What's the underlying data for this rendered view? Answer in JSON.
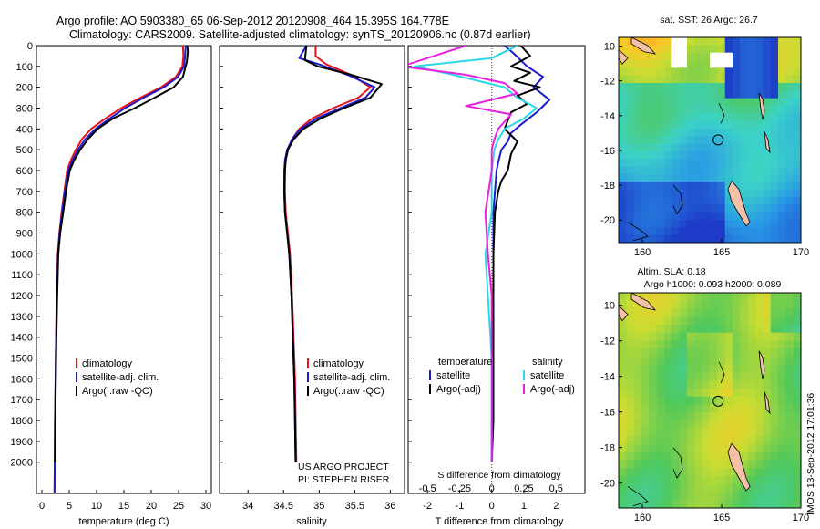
{
  "header": {
    "title_line1": "Argo profile: AO 5903380_65 06-Sep-2012 20120908_464 15.395S 164.778E",
    "title_line2": "Climatology: CARS2009. Satellite-adjusted climatology: synTS_20120906.nc (0.87d earlier)"
  },
  "colors": {
    "climatology": "#e8141a",
    "satellite": "#1a1ad0",
    "argo": "#000000",
    "sat_salinity": "#28d8e8",
    "argo_salinity": "#e81ee0"
  },
  "chart_data": [
    {
      "type": "line",
      "id": "temperature",
      "xlabel": "temperature (deg C)",
      "ylim": [
        2150,
        0
      ],
      "xlim": [
        -1,
        31
      ],
      "xticks": [
        "0",
        "5",
        "10",
        "15",
        "20",
        "25",
        "30"
      ],
      "yticks": [
        "0",
        "100",
        "200",
        "300",
        "400",
        "500",
        "600",
        "700",
        "800",
        "900",
        "1000",
        "1100",
        "1200",
        "1300",
        "1400",
        "1500",
        "1600",
        "1700",
        "1800",
        "1900",
        "2000"
      ],
      "legend": [
        "climatology",
        "satellite-adj. clim.",
        "Argo(..raw -QC)"
      ],
      "series": [
        {
          "name": "climatology",
          "color_key": "climatology",
          "x": [
            25.8,
            25.9,
            25.7,
            24.5,
            21.8,
            18.0,
            14.5,
            11.6,
            9.0,
            7.3,
            6.2,
            5.3,
            4.6,
            4.1,
            3.6,
            3.2,
            2.9,
            2.7,
            2.6,
            2.5,
            2.4,
            2.35,
            2.3
          ],
          "y": [
            0,
            50,
            100,
            150,
            200,
            250,
            300,
            350,
            400,
            450,
            500,
            550,
            600,
            700,
            800,
            900,
            1000,
            1200,
            1400,
            1600,
            1800,
            2000,
            2150
          ]
        },
        {
          "name": "satellite-adj. clim.",
          "color_key": "satellite",
          "x": [
            26.3,
            26.2,
            26.0,
            24.9,
            22.3,
            18.6,
            15.2,
            12.4,
            9.8,
            7.9,
            6.6,
            5.6,
            4.8,
            4.2,
            3.7,
            3.25,
            2.95,
            2.75,
            2.6,
            2.5,
            2.4,
            2.35,
            2.3
          ],
          "y": [
            0,
            50,
            100,
            150,
            200,
            250,
            300,
            350,
            400,
            450,
            500,
            550,
            600,
            700,
            800,
            900,
            1000,
            1200,
            1400,
            1600,
            1800,
            2000,
            2150
          ]
        },
        {
          "name": "Argo(..raw -QC)",
          "color_key": "argo",
          "x": [
            26.6,
            26.7,
            26.5,
            25.8,
            24.1,
            20.6,
            17.0,
            13.0,
            10.2,
            8.4,
            7.0,
            5.9,
            5.1,
            4.4,
            3.9,
            3.35,
            3.0,
            2.8,
            2.65,
            2.55,
            2.45,
            2.4
          ],
          "y": [
            0,
            30,
            80,
            150,
            200,
            250,
            300,
            350,
            400,
            450,
            500,
            550,
            600,
            700,
            800,
            900,
            1000,
            1200,
            1400,
            1600,
            1800,
            2000
          ]
        }
      ]
    },
    {
      "type": "line",
      "id": "salinity",
      "xlabel": "salinity",
      "ylim": [
        2150,
        0
      ],
      "xlim": [
        33.6,
        36.2
      ],
      "xticks": [
        "34",
        "34.5",
        "35",
        "35.5",
        "36"
      ],
      "legend": [
        "climatology",
        "satellite-adj. clim.",
        "Argo(..raw -QC)"
      ],
      "annotation": [
        "US ARGO PROJECT",
        "PI: STEPHEN RISER"
      ],
      "series": [
        {
          "name": "climatology",
          "color_key": "climatology",
          "x": [
            34.95,
            34.95,
            35.1,
            35.45,
            35.72,
            35.55,
            35.2,
            34.9,
            34.72,
            34.62,
            34.56,
            34.53,
            34.52,
            34.52,
            34.53,
            34.56,
            34.59,
            34.62,
            34.64,
            34.66,
            34.67,
            34.68
          ],
          "y": [
            0,
            50,
            90,
            140,
            200,
            250,
            300,
            350,
            400,
            450,
            500,
            550,
            600,
            700,
            800,
            900,
            1000,
            1200,
            1400,
            1600,
            1800,
            2000
          ]
        },
        {
          "name": "satellite-adj. clim.",
          "color_key": "satellite",
          "x": [
            34.82,
            34.72,
            35.0,
            35.4,
            35.78,
            35.65,
            35.3,
            34.96,
            34.74,
            34.62,
            34.55,
            34.52,
            34.51,
            34.51,
            34.52,
            34.55,
            34.58,
            34.61,
            34.63,
            34.65,
            34.66,
            34.67
          ],
          "y": [
            0,
            60,
            90,
            140,
            200,
            250,
            300,
            350,
            400,
            450,
            500,
            550,
            600,
            700,
            800,
            900,
            1000,
            1200,
            1400,
            1600,
            1800,
            2000
          ]
        },
        {
          "name": "Argo(..raw -QC)",
          "color_key": "argo",
          "x": [
            34.82,
            34.8,
            34.98,
            35.45,
            35.88,
            35.72,
            35.35,
            35.02,
            34.78,
            34.64,
            34.56,
            34.53,
            34.52,
            34.51,
            34.52,
            34.55,
            34.58,
            34.61,
            34.63,
            34.65,
            34.66,
            34.67
          ],
          "y": [
            0,
            70,
            100,
            140,
            185,
            250,
            300,
            350,
            400,
            450,
            500,
            550,
            600,
            700,
            800,
            900,
            1000,
            1200,
            1400,
            1600,
            1800,
            2000
          ]
        }
      ]
    },
    {
      "type": "line",
      "id": "difference",
      "xlabel_top": "S difference from climatology",
      "xlabel": "T difference from climatology",
      "ylim": [
        2150,
        0
      ],
      "xlim": [
        -2.6,
        2.9
      ],
      "s_ticks": [
        "-0.5",
        "-0.25",
        "0",
        "0.25",
        "0.5"
      ],
      "t_ticks": [
        "-2",
        "-1",
        "0",
        "1",
        "2"
      ],
      "legend_headers": [
        "temperature",
        "salinity"
      ],
      "legend": [
        "satellite",
        "Argo(-adj)",
        "satellite",
        "Argo(-adj)"
      ],
      "series": [
        {
          "name": "satellite",
          "quantity": "temperature",
          "color_key": "satellite",
          "x": [
            0.4,
            0.7,
            1.1,
            1.6,
            1.3,
            1.8,
            1.4,
            0.9,
            0.6,
            0.5,
            0.3,
            0.2,
            0.15,
            0.1,
            0.05,
            0.05,
            0.05,
            0.02,
            0.02,
            0.0
          ],
          "y": [
            0,
            40,
            100,
            150,
            200,
            260,
            320,
            380,
            420,
            460,
            500,
            560,
            600,
            700,
            800,
            1000,
            1200,
            1500,
            1800,
            2000
          ]
        },
        {
          "name": "Argo(-adj)",
          "quantity": "temperature",
          "color_key": "argo",
          "x": [
            0.9,
            1.2,
            0.6,
            1.2,
            0.7,
            1.5,
            0.8,
            1.1,
            0.6,
            0.4,
            0.8,
            0.6,
            0.5,
            0.3,
            0.2,
            0.1,
            0.05,
            0.05,
            0.05,
            0.0
          ],
          "y": [
            0,
            50,
            100,
            130,
            170,
            200,
            240,
            280,
            320,
            400,
            460,
            520,
            600,
            650,
            700,
            800,
            1000,
            1400,
            1800,
            2000
          ]
        },
        {
          "name": "satellite",
          "quantity": "salinity",
          "color_key": "sat_salinity",
          "x": [
            0.2,
            0.0,
            -0.6,
            -0.3,
            0.1,
            0.2,
            0.35,
            0.25,
            0.1,
            0.05,
            0.02,
            0.0,
            0.0,
            -0.05,
            -0.03,
            0.0,
            0.0,
            0.0
          ],
          "y": [
            0,
            60,
            100,
            140,
            200,
            250,
            300,
            350,
            400,
            450,
            500,
            600,
            800,
            1000,
            1200,
            1500,
            1800,
            2000
          ]
        },
        {
          "name": "Argo(-adj)",
          "quantity": "salinity",
          "color_key": "argo_salinity",
          "x": [
            -0.2,
            -0.7,
            -0.2,
            0.1,
            0.2,
            -0.2,
            0.15,
            0.05,
            0.02,
            0.0,
            0.0,
            -0.05,
            -0.03,
            0.0,
            0.0,
            0.0
          ],
          "y": [
            0,
            100,
            140,
            180,
            230,
            290,
            330,
            400,
            450,
            500,
            600,
            800,
            1000,
            1200,
            1500,
            2000
          ]
        }
      ]
    }
  ],
  "maps": [
    {
      "id": "sst",
      "title": "sat. SST: 26 Argo: 26.7",
      "xticks": [
        "160",
        "165",
        "170"
      ],
      "yticks": [
        "-10",
        "-12",
        "-14",
        "-16",
        "-18",
        "-20"
      ]
    },
    {
      "id": "sla",
      "title_line1": "Altim. SLA: 0.18",
      "title_line2": "Argo h1000: 0.093 h2000: 0.089",
      "xticks": [
        "160",
        "165",
        "170"
      ],
      "yticks": [
        "-10",
        "-12",
        "-14",
        "-16",
        "-18",
        "-20"
      ]
    }
  ],
  "footer": {
    "stamp": "IMOS 13-Sep-2012 17:01:36"
  }
}
